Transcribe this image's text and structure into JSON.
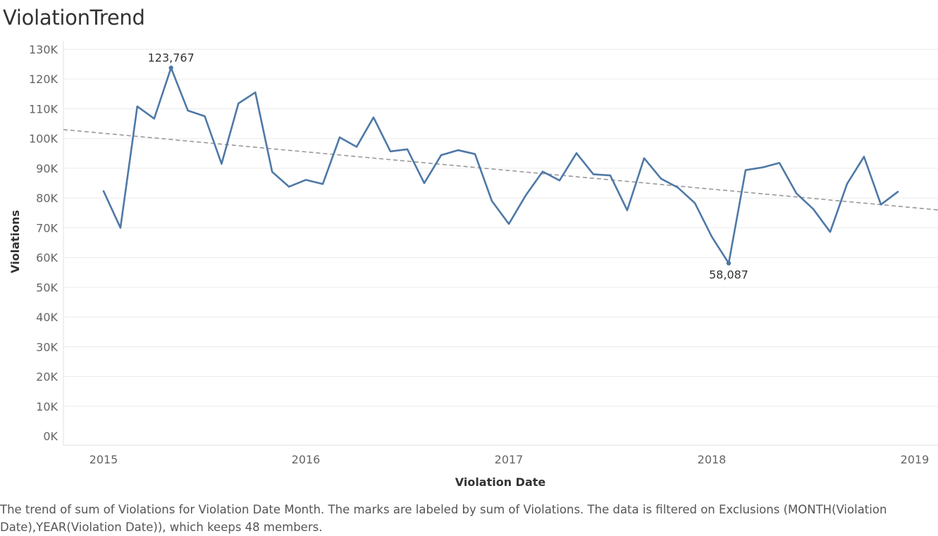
{
  "title": "ViolationTrend",
  "caption": "The trend of sum of Violations for Violation Date Month.  The marks are labeled by sum of Violations. The data is filtered on Exclusions (MONTH(Violation Date),YEAR(Violation Date)), which keeps 48 members.",
  "colors": {
    "line": "#4e79a7",
    "trend": "#999999",
    "grid": "#ebebeb"
  },
  "chart_data": {
    "type": "line",
    "title": "ViolationTrend",
    "xlabel": "Violation Date",
    "ylabel": "Violations",
    "ylim": [
      0,
      130000
    ],
    "yticks": [
      0,
      10000,
      20000,
      30000,
      40000,
      50000,
      60000,
      70000,
      80000,
      90000,
      100000,
      110000,
      120000,
      130000
    ],
    "ytick_labels": [
      "0K",
      "10K",
      "20K",
      "30K",
      "40K",
      "50K",
      "60K",
      "70K",
      "80K",
      "90K",
      "100K",
      "110K",
      "120K",
      "130K"
    ],
    "xtick_labels": [
      "2015",
      "2016",
      "2017",
      "2018",
      "2019"
    ],
    "x": [
      "2015-01",
      "2015-02",
      "2015-03",
      "2015-04",
      "2015-05",
      "2015-06",
      "2015-07",
      "2015-08",
      "2015-09",
      "2015-10",
      "2015-11",
      "2015-12",
      "2016-01",
      "2016-02",
      "2016-03",
      "2016-04",
      "2016-05",
      "2016-06",
      "2016-07",
      "2016-08",
      "2016-09",
      "2016-10",
      "2016-11",
      "2016-12",
      "2017-01",
      "2017-02",
      "2017-03",
      "2017-04",
      "2017-05",
      "2017-06",
      "2017-07",
      "2017-08",
      "2017-09",
      "2017-10",
      "2017-11",
      "2017-12",
      "2018-01",
      "2018-02",
      "2018-03",
      "2018-04",
      "2018-05",
      "2018-06",
      "2018-07",
      "2018-08",
      "2018-09",
      "2018-10",
      "2018-11",
      "2018-12"
    ],
    "series": [
      {
        "values": [
          82300,
          70000,
          110800,
          106700,
          123767,
          109400,
          107500,
          91500,
          111800,
          115500,
          88800,
          83800,
          86100,
          84700,
          100400,
          97200,
          107100,
          95700,
          96400,
          85000,
          94400,
          96100,
          94800,
          79000,
          71300,
          80900,
          88900,
          85900,
          95100,
          88000,
          87600,
          75900,
          93400,
          86500,
          83500,
          78300,
          67000,
          58087,
          89400,
          90300,
          91800,
          81600,
          76300,
          68600,
          84800,
          93900,
          77800,
          82100
        ]
      }
    ],
    "labels": [
      {
        "x": "2015-05",
        "text": "123,767"
      },
      {
        "x": "2018-02",
        "text": "58,087"
      }
    ],
    "trend_line": {
      "style": "dashed",
      "from_value": 103000,
      "to_value": 76000
    },
    "grid": true
  }
}
